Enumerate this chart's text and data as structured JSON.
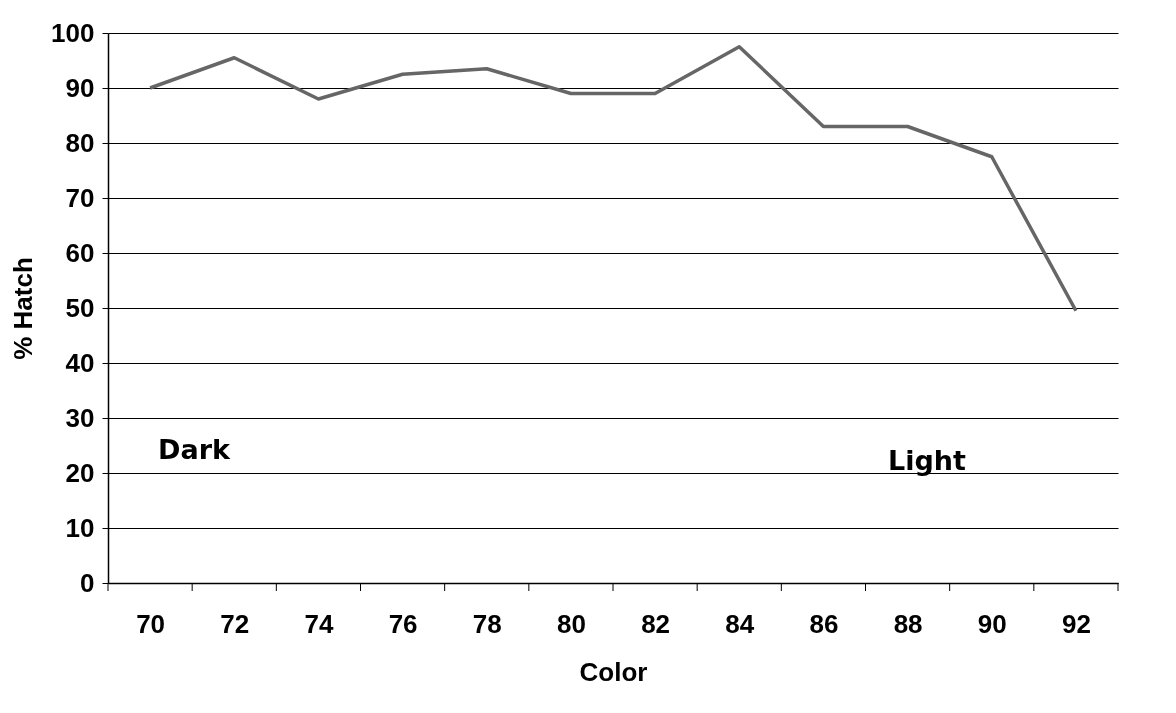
{
  "chart_data": {
    "type": "line",
    "xlabel": "Color",
    "ylabel": "% Hatch",
    "categories": [
      "70",
      "72",
      "74",
      "76",
      "78",
      "80",
      "82",
      "84",
      "86",
      "88",
      "90",
      "92"
    ],
    "series": [
      {
        "color": "#666666",
        "values": [
          90,
          95.5,
          88,
          92.5,
          93.5,
          89,
          89,
          97.5,
          83,
          83,
          77.5,
          49.5
        ]
      }
    ],
    "ylim": [
      0,
      100
    ],
    "yticks": [
      0,
      10,
      20,
      30,
      40,
      50,
      60,
      70,
      80,
      90,
      100
    ],
    "grid": "y",
    "marker": "none",
    "line_style": "solid",
    "annotations": [
      "Dark",
      "Light"
    ]
  }
}
